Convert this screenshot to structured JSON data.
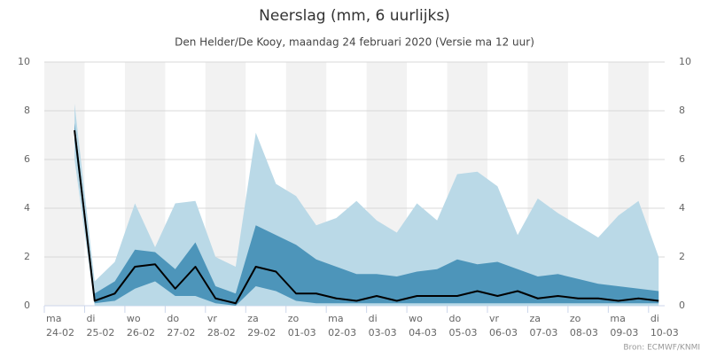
{
  "chart_data": {
    "type": "plume",
    "title": "Neerslag (mm, 6 uurlijks)",
    "subtitle": "Den Helder/De Kooy, maandag 24 februari 2020 (Versie ma 12 uur)",
    "credit": "Bron: ECMWF/KNMI",
    "xlim": [
      0,
      15.4
    ],
    "xticks": [
      {
        "value": 0,
        "label": "ma",
        "date": "24-02"
      },
      {
        "value": 1,
        "label": "di",
        "date": "25-02"
      },
      {
        "value": 2,
        "label": "wo",
        "date": "26-02"
      },
      {
        "value": 3,
        "label": "do",
        "date": "27-02"
      },
      {
        "value": 4,
        "label": "vr",
        "date": "28-02"
      },
      {
        "value": 5,
        "label": "za",
        "date": "29-02"
      },
      {
        "value": 6,
        "label": "zo",
        "date": "01-03"
      },
      {
        "value": 7,
        "label": "ma",
        "date": "02-03"
      },
      {
        "value": 8,
        "label": "di",
        "date": "03-03"
      },
      {
        "value": 9,
        "label": "wo",
        "date": "04-03"
      },
      {
        "value": 10,
        "label": "do",
        "date": "05-03"
      },
      {
        "value": 11,
        "label": "vr",
        "date": "06-03"
      },
      {
        "value": 12,
        "label": "za",
        "date": "07-03"
      },
      {
        "value": 13,
        "label": "zo",
        "date": "08-03"
      },
      {
        "value": 14,
        "label": "ma",
        "date": "09-03"
      },
      {
        "value": 15,
        "label": "di",
        "date": "10-03"
      }
    ],
    "ylim": [
      0,
      10
    ],
    "yticks": [
      0,
      2,
      4,
      6,
      8,
      10
    ],
    "y2lim": [
      0,
      10
    ],
    "y2ticks": [
      0,
      2,
      4,
      6,
      8,
      10
    ],
    "grid": true,
    "x": [
      0.75,
      1.25,
      1.75,
      2.25,
      2.75,
      3.25,
      3.75,
      4.25,
      4.75,
      5.25,
      5.75,
      6.25,
      6.75,
      7.25,
      7.75,
      8.25,
      8.75,
      9.25,
      9.75,
      10.25,
      10.75,
      11.25,
      11.75,
      12.25,
      12.75,
      13.25,
      13.75,
      14.25,
      14.75,
      15.25
    ],
    "series": [
      {
        "color": "#bad9e7",
        "high": [
          8.3,
          1.0,
          1.8,
          4.2,
          2.4,
          4.2,
          4.3,
          2.0,
          1.6,
          7.1,
          5.0,
          4.5,
          3.3,
          3.6,
          4.3,
          3.5,
          3.0,
          4.2,
          3.5,
          5.4,
          5.5,
          4.9,
          2.9,
          4.4,
          3.8,
          3.3,
          2.8,
          3.7,
          4.3,
          2.0
        ],
        "low": [
          6.0,
          0,
          0,
          0,
          0,
          0,
          0,
          0,
          0,
          0,
          0,
          0,
          0,
          0,
          0,
          0,
          0,
          0,
          0,
          0,
          0,
          0,
          0,
          0,
          0,
          0,
          0,
          0,
          0,
          0
        ]
      },
      {
        "color": "#4d95ba",
        "high": [
          7.5,
          0.5,
          1.0,
          2.3,
          2.2,
          1.5,
          2.6,
          0.8,
          0.5,
          3.3,
          2.9,
          2.5,
          1.9,
          1.6,
          1.3,
          1.3,
          1.2,
          1.4,
          1.5,
          1.9,
          1.7,
          1.8,
          1.5,
          1.2,
          1.3,
          1.1,
          0.9,
          0.8,
          0.7,
          0.6
        ],
        "low": [
          6.8,
          0.1,
          0.2,
          0.7,
          1.0,
          0.4,
          0.4,
          0.1,
          0,
          0.8,
          0.6,
          0.2,
          0.1,
          0.1,
          0.1,
          0.1,
          0.1,
          0.1,
          0.1,
          0.1,
          0.1,
          0.1,
          0.1,
          0.1,
          0.1,
          0.1,
          0.1,
          0.1,
          0.1,
          0.1
        ]
      },
      {
        "color": "#000000",
        "values": [
          7.2,
          0.2,
          0.5,
          1.6,
          1.7,
          0.7,
          1.6,
          0.3,
          0.1,
          1.6,
          1.4,
          0.5,
          0.5,
          0.3,
          0.2,
          0.4,
          0.2,
          0.4,
          0.4,
          0.4,
          0.6,
          0.4,
          0.6,
          0.3,
          0.4,
          0.3,
          0.3,
          0.2,
          0.3,
          0.2
        ]
      }
    ]
  }
}
